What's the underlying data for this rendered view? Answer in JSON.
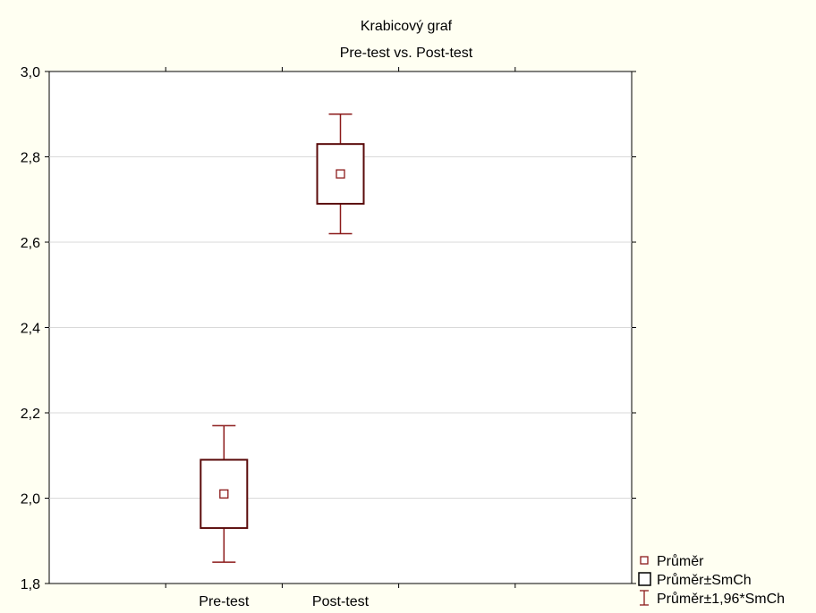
{
  "chart_data": {
    "type": "box",
    "title": "Krabicový graf",
    "subtitle": "Pre-test vs. Post-test",
    "categories": [
      "Pre-test",
      "Post-test"
    ],
    "ylim": [
      1.8,
      3.0
    ],
    "yticks": [
      "1,8",
      "2,0",
      "2,2",
      "2,4",
      "2,6",
      "2,8",
      "3,0"
    ],
    "ytick_values": [
      1.8,
      2.0,
      2.2,
      2.4,
      2.6,
      2.8,
      3.0
    ],
    "grid": true,
    "legend_position": "bottom-right",
    "boxes": [
      {
        "category": "Pre-test",
        "mean": 2.01,
        "box_low": 1.93,
        "box_high": 2.09,
        "whisker_low": 1.85,
        "whisker_high": 2.17
      },
      {
        "category": "Post-test",
        "mean": 2.76,
        "box_low": 2.69,
        "box_high": 2.83,
        "whisker_low": 2.62,
        "whisker_high": 2.9
      }
    ],
    "legend": [
      {
        "label": "Průměr",
        "symbol": "mean-marker"
      },
      {
        "label": "Průměr±SmCh",
        "symbol": "box"
      },
      {
        "label": "Průměr±1,96*SmCh",
        "symbol": "whisker"
      }
    ],
    "colors": {
      "box_stroke": "#5a0a0a",
      "whisker": "#8b1a1a",
      "grid": "#d9d9d9",
      "plot_bg": "#ffffff",
      "page_bg": "#fffff2"
    }
  }
}
